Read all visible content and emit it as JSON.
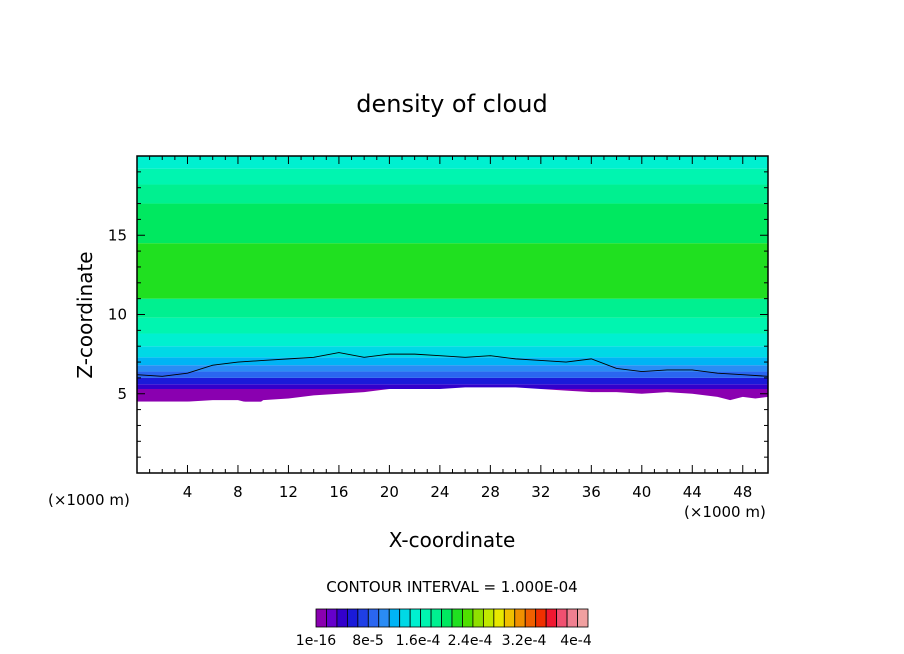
{
  "chart_data": {
    "type": "heatmap",
    "title": "density of cloud",
    "xlabel": "X-coordinate",
    "ylabel": "Z-coordinate",
    "x_unit_left": "(×1000 m)",
    "x_unit_right": "(×1000 m)",
    "xlim": [
      0,
      50
    ],
    "ylim": [
      0,
      20
    ],
    "x_ticks": [
      4,
      8,
      12,
      16,
      20,
      24,
      28,
      32,
      36,
      40,
      44,
      48
    ],
    "y_ticks": [
      5,
      10,
      15
    ],
    "contour_interval_text": "CONTOUR INTERVAL = 1.000E-04",
    "colorbar": {
      "colors": [
        "#8a00b0",
        "#6600cc",
        "#3300cc",
        "#1a1ad9",
        "#1f3fe6",
        "#2a66f0",
        "#2a8cf5",
        "#00b4f5",
        "#00d9e6",
        "#00f0d0",
        "#00f5b0",
        "#00f090",
        "#00e860",
        "#20e020",
        "#50e000",
        "#90e000",
        "#c0e800",
        "#e8e800",
        "#f0c000",
        "#f09000",
        "#f06000",
        "#f03000",
        "#f01830",
        "#f05070",
        "#f08090",
        "#f0a0a0"
      ],
      "labels": [
        "1e-16",
        "8e-5",
        "1.6e-4",
        "2.4e-4",
        "3.2e-4",
        "4e-4"
      ]
    },
    "field_bands": [
      {
        "z_bottom": 4.5,
        "z_top": 5.3,
        "color": "#8a00b0"
      },
      {
        "z_bottom": 5.3,
        "z_top": 5.6,
        "color": "#3300cc"
      },
      {
        "z_bottom": 5.6,
        "z_top": 6.0,
        "color": "#1a1ad9"
      },
      {
        "z_bottom": 6.0,
        "z_top": 6.4,
        "color": "#2a66f0"
      },
      {
        "z_bottom": 6.4,
        "z_top": 6.8,
        "color": "#2a8cf5"
      },
      {
        "z_bottom": 6.8,
        "z_top": 7.3,
        "color": "#00b4f5"
      },
      {
        "z_bottom": 7.3,
        "z_top": 8.0,
        "color": "#00d9e6"
      },
      {
        "z_bottom": 8.0,
        "z_top": 8.8,
        "color": "#00f0d0"
      },
      {
        "z_bottom": 8.8,
        "z_top": 9.8,
        "color": "#00f5b0"
      },
      {
        "z_bottom": 9.8,
        "z_top": 11.0,
        "color": "#00f090"
      },
      {
        "z_bottom": 11.0,
        "z_top": 14.5,
        "color": "#20e020"
      },
      {
        "z_bottom": 14.5,
        "z_top": 17.0,
        "color": "#00e860"
      },
      {
        "z_bottom": 17.0,
        "z_top": 18.2,
        "color": "#00f090"
      },
      {
        "z_bottom": 18.2,
        "z_top": 19.2,
        "color": "#00f5b0"
      },
      {
        "z_bottom": 19.2,
        "z_top": 20.0,
        "color": "#00f0d0"
      }
    ],
    "cloud_base_x": [
      0,
      2,
      4,
      6,
      8,
      9.5,
      10,
      12,
      14,
      16,
      18,
      20,
      22,
      24,
      26,
      28,
      30,
      32,
      34,
      36,
      38,
      40,
      42,
      44,
      46,
      47,
      48,
      49,
      50
    ],
    "cloud_base_z": [
      4.5,
      4.5,
      4.5,
      4.6,
      4.6,
      4.3,
      4.6,
      4.7,
      4.9,
      5.0,
      5.1,
      5.3,
      5.3,
      5.3,
      5.4,
      5.4,
      5.4,
      5.3,
      5.2,
      5.1,
      5.1,
      5.0,
      5.1,
      5.0,
      4.8,
      4.6,
      4.8,
      4.7,
      4.8
    ],
    "contour_line_x": [
      0,
      2,
      4,
      6,
      8,
      10,
      12,
      14,
      16,
      18,
      20,
      22,
      24,
      26,
      28,
      30,
      32,
      34,
      36,
      38,
      40,
      42,
      44,
      46,
      48,
      50
    ],
    "contour_line_z": [
      6.2,
      6.1,
      6.3,
      6.8,
      7.0,
      7.1,
      7.2,
      7.3,
      7.6,
      7.3,
      7.5,
      7.5,
      7.4,
      7.3,
      7.4,
      7.2,
      7.1,
      7.0,
      7.2,
      6.6,
      6.4,
      6.5,
      6.5,
      6.3,
      6.2,
      6.1
    ]
  }
}
